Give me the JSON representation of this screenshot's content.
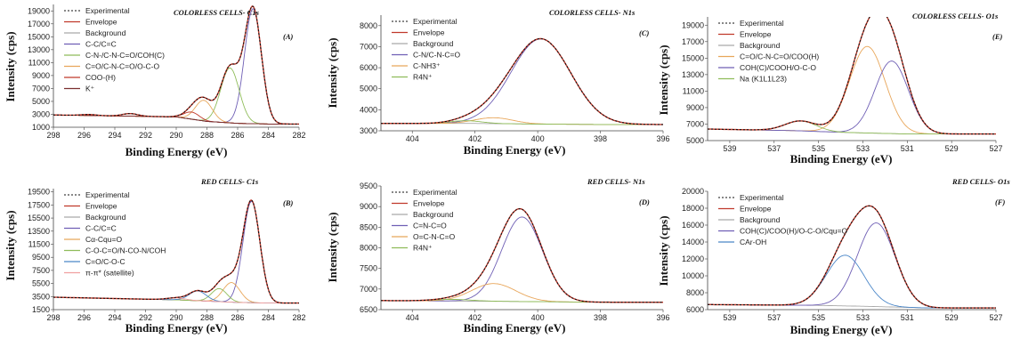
{
  "chart_data": [
    {
      "id": "A",
      "type": "line",
      "title": "COLORLESS CELLS- C1s",
      "panel_label": "(A)",
      "xlabel": "Binding Energy (eV)",
      "ylabel": "Intensity (cps)",
      "xlim": [
        298,
        282
      ],
      "ylim": [
        1000,
        20000
      ],
      "xticks": [
        298,
        296,
        294,
        292,
        290,
        288,
        286,
        284,
        282
      ],
      "yticks": [
        1000,
        3000,
        5000,
        7000,
        9000,
        11000,
        13000,
        15000,
        17000,
        19000
      ],
      "legend": [
        "Experimental",
        "Envelope",
        "Background",
        "C-C/C=C",
        "C-N-/C-N-C=O/COH(C)",
        "C=O/C-N-C=O/O-C-O",
        "COO-(H)",
        "K⁺"
      ],
      "colors": [
        "#111111",
        "#c0392b",
        "#a9a9a9",
        "#6f5fb5",
        "#8fbc5a",
        "#e8a65a",
        "#c0392b",
        "#7a2e2e"
      ],
      "background": [
        [
          298,
          2900
        ],
        [
          290,
          2600
        ],
        [
          288,
          1900
        ],
        [
          286,
          1600
        ],
        [
          284,
          1500
        ],
        [
          282,
          1500
        ]
      ],
      "peaks": [
        [
          285.0,
          17800,
          0.55
        ],
        [
          286.5,
          8500,
          0.6
        ],
        [
          288.2,
          3200,
          0.55
        ],
        [
          289.0,
          1100,
          0.5
        ],
        [
          293.0,
          400,
          0.5
        ],
        [
          295.7,
          150,
          0.5
        ]
      ]
    },
    {
      "id": "B",
      "type": "line",
      "title": "RED CELLS- C1s",
      "panel_label": "(B)",
      "xlabel": "Binding Energy (eV)",
      "ylabel": "Intensity (cps)",
      "xlim": [
        298,
        282
      ],
      "ylim": [
        1500,
        20000
      ],
      "xticks": [
        298,
        296,
        294,
        292,
        290,
        288,
        286,
        284,
        282
      ],
      "yticks": [
        1500,
        3500,
        5500,
        7500,
        9500,
        11500,
        13500,
        15500,
        17500,
        19500
      ],
      "legend": [
        "Experimental",
        "Envelope",
        "Background",
        "C-C/C=C",
        "Cα-Cqu=O",
        "C-O-C=O/N-CO-N/COH",
        "C=O/C-O-C",
        "π-π* (satellite)"
      ],
      "colors": [
        "#111111",
        "#c0392b",
        "#a9a9a9",
        "#6f5fb5",
        "#e8a65a",
        "#8fbc5a",
        "#4a86c8",
        "#f0a0a0"
      ],
      "background": [
        [
          298,
          3400
        ],
        [
          290,
          3000
        ],
        [
          288,
          2800
        ],
        [
          286,
          2600
        ],
        [
          284,
          2500
        ],
        [
          282,
          2500
        ]
      ],
      "peaks": [
        [
          285.1,
          15500,
          0.55
        ],
        [
          286.4,
          3000,
          0.55
        ],
        [
          287.2,
          2000,
          0.5
        ],
        [
          288.6,
          1500,
          0.55
        ],
        [
          290.0,
          300,
          0.6
        ]
      ]
    },
    {
      "id": "C",
      "type": "line",
      "title": "COLORLESS CELLS- N1s",
      "panel_label": "(C)",
      "xlabel": "Binding Energy (eV)",
      "ylabel": "Intensity (cps)",
      "xlim": [
        405,
        396
      ],
      "ylim": [
        3000,
        8500
      ],
      "xticks": [
        404,
        402,
        400,
        398,
        396
      ],
      "yticks": [
        3000,
        4000,
        5000,
        6000,
        7000,
        8000
      ],
      "legend": [
        "Experimental",
        "Envelope",
        "Background",
        "C-N/C-N-C=O",
        "C-NH3⁺",
        "R4N⁺"
      ],
      "colors": [
        "#111111",
        "#c0392b",
        "#a9a9a9",
        "#6f5fb5",
        "#e8a65a",
        "#8fbc5a"
      ],
      "background": [
        [
          405,
          3350
        ],
        [
          402,
          3350
        ],
        [
          400,
          3320
        ],
        [
          398,
          3300
        ],
        [
          396,
          3300
        ]
      ],
      "peaks": [
        [
          399.9,
          4050,
          0.95
        ],
        [
          401.4,
          280,
          0.6
        ],
        [
          402.3,
          130,
          0.5
        ]
      ]
    },
    {
      "id": "D",
      "type": "line",
      "title": "RED CELLS- N1s",
      "panel_label": "(D)",
      "xlabel": "Binding Energy (eV)",
      "ylabel": "Intensity (cps)",
      "xlim": [
        405,
        396
      ],
      "ylim": [
        6500,
        9500
      ],
      "xticks": [
        404,
        402,
        400,
        398,
        396
      ],
      "yticks": [
        6500,
        7000,
        7500,
        8000,
        8500,
        9000,
        9500
      ],
      "legend": [
        "Experimental",
        "Envelope",
        "Background",
        "C=N-C=O",
        "O=C-N-C=O",
        "R4N⁺"
      ],
      "colors": [
        "#111111",
        "#c0392b",
        "#a9a9a9",
        "#6f5fb5",
        "#e8a65a",
        "#8fbc5a"
      ],
      "background": [
        [
          405,
          6720
        ],
        [
          401,
          6700
        ],
        [
          398,
          6680
        ],
        [
          396,
          6680
        ]
      ],
      "peaks": [
        [
          400.5,
          2050,
          0.65
        ],
        [
          401.4,
          430,
          0.7
        ],
        [
          402.7,
          40,
          0.6
        ]
      ]
    },
    {
      "id": "E",
      "type": "line",
      "title": "COLORLESS CELLS- O1s",
      "panel_label": "(E)",
      "xlabel": "Binding Energy (eV)",
      "ylabel": "Intensity (cps)",
      "xlim": [
        540,
        527
      ],
      "ylim": [
        5000,
        20000
      ],
      "xticks": [
        539,
        537,
        535,
        533,
        531,
        529,
        527
      ],
      "yticks": [
        5000,
        7000,
        9000,
        11000,
        13000,
        15000,
        17000,
        19000
      ],
      "legend": [
        "Experimental",
        "Envelope",
        "Background",
        "C=O/C-N-C=O/COO(H)",
        "COH(C)/COOH/O-C-O",
        "Na (K1L1L23)"
      ],
      "colors": [
        "#111111",
        "#c0392b",
        "#a9a9a9",
        "#e8a65a",
        "#6f5fb5",
        "#8fbc5a"
      ],
      "background": [
        [
          540,
          6400
        ],
        [
          536,
          6200
        ],
        [
          534,
          6000
        ],
        [
          531,
          5800
        ],
        [
          527,
          5800
        ]
      ],
      "peaks": [
        [
          532.8,
          10500,
          0.8
        ],
        [
          531.7,
          8800,
          0.75
        ],
        [
          535.8,
          1200,
          0.7
        ]
      ]
    },
    {
      "id": "F",
      "type": "line",
      "title": "RED CELLS- O1s",
      "panel_label": "(F)",
      "xlabel": "Binding Energy (eV)",
      "ylabel": "Intensity (cps)",
      "xlim": [
        540,
        527
      ],
      "ylim": [
        6000,
        20000
      ],
      "xticks": [
        539,
        537,
        535,
        533,
        531,
        529,
        527
      ],
      "yticks": [
        6000,
        8000,
        10000,
        12000,
        14000,
        16000,
        18000,
        20000
      ],
      "legend": [
        "Experimental",
        "Envelope",
        "Background",
        "COH(C)/COO(H)/O-C-O/Cqu=O",
        "CAr-OH"
      ],
      "colors": [
        "#111111",
        "#c0392b",
        "#a9a9a9",
        "#6f5fb5",
        "#4a86c8"
      ],
      "background": [
        [
          540,
          6600
        ],
        [
          535,
          6500
        ],
        [
          533,
          6400
        ],
        [
          530,
          6200
        ],
        [
          527,
          6200
        ]
      ],
      "peaks": [
        [
          532.4,
          9900,
          0.85
        ],
        [
          533.8,
          6000,
          0.85
        ]
      ]
    }
  ]
}
